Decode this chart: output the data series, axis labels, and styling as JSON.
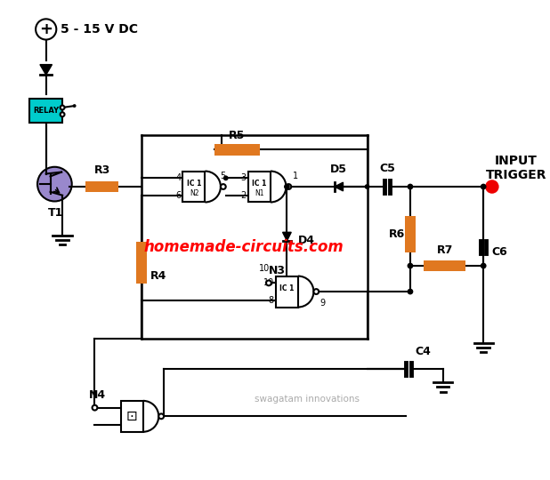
{
  "bg_color": "#ffffff",
  "vcc_label": "5 - 15 V DC",
  "watermark": "homemade-circuits.com",
  "watermark2": "swagatam innovations",
  "input_trigger_label": "INPUT\nTRIGGER",
  "relay_color": "#00cccc",
  "relay_label": "RELAY",
  "resistor_color": "#e07820",
  "wire_color": "#000000",
  "red_dot_color": "#ee0000",
  "transistor_color": "#9988cc"
}
